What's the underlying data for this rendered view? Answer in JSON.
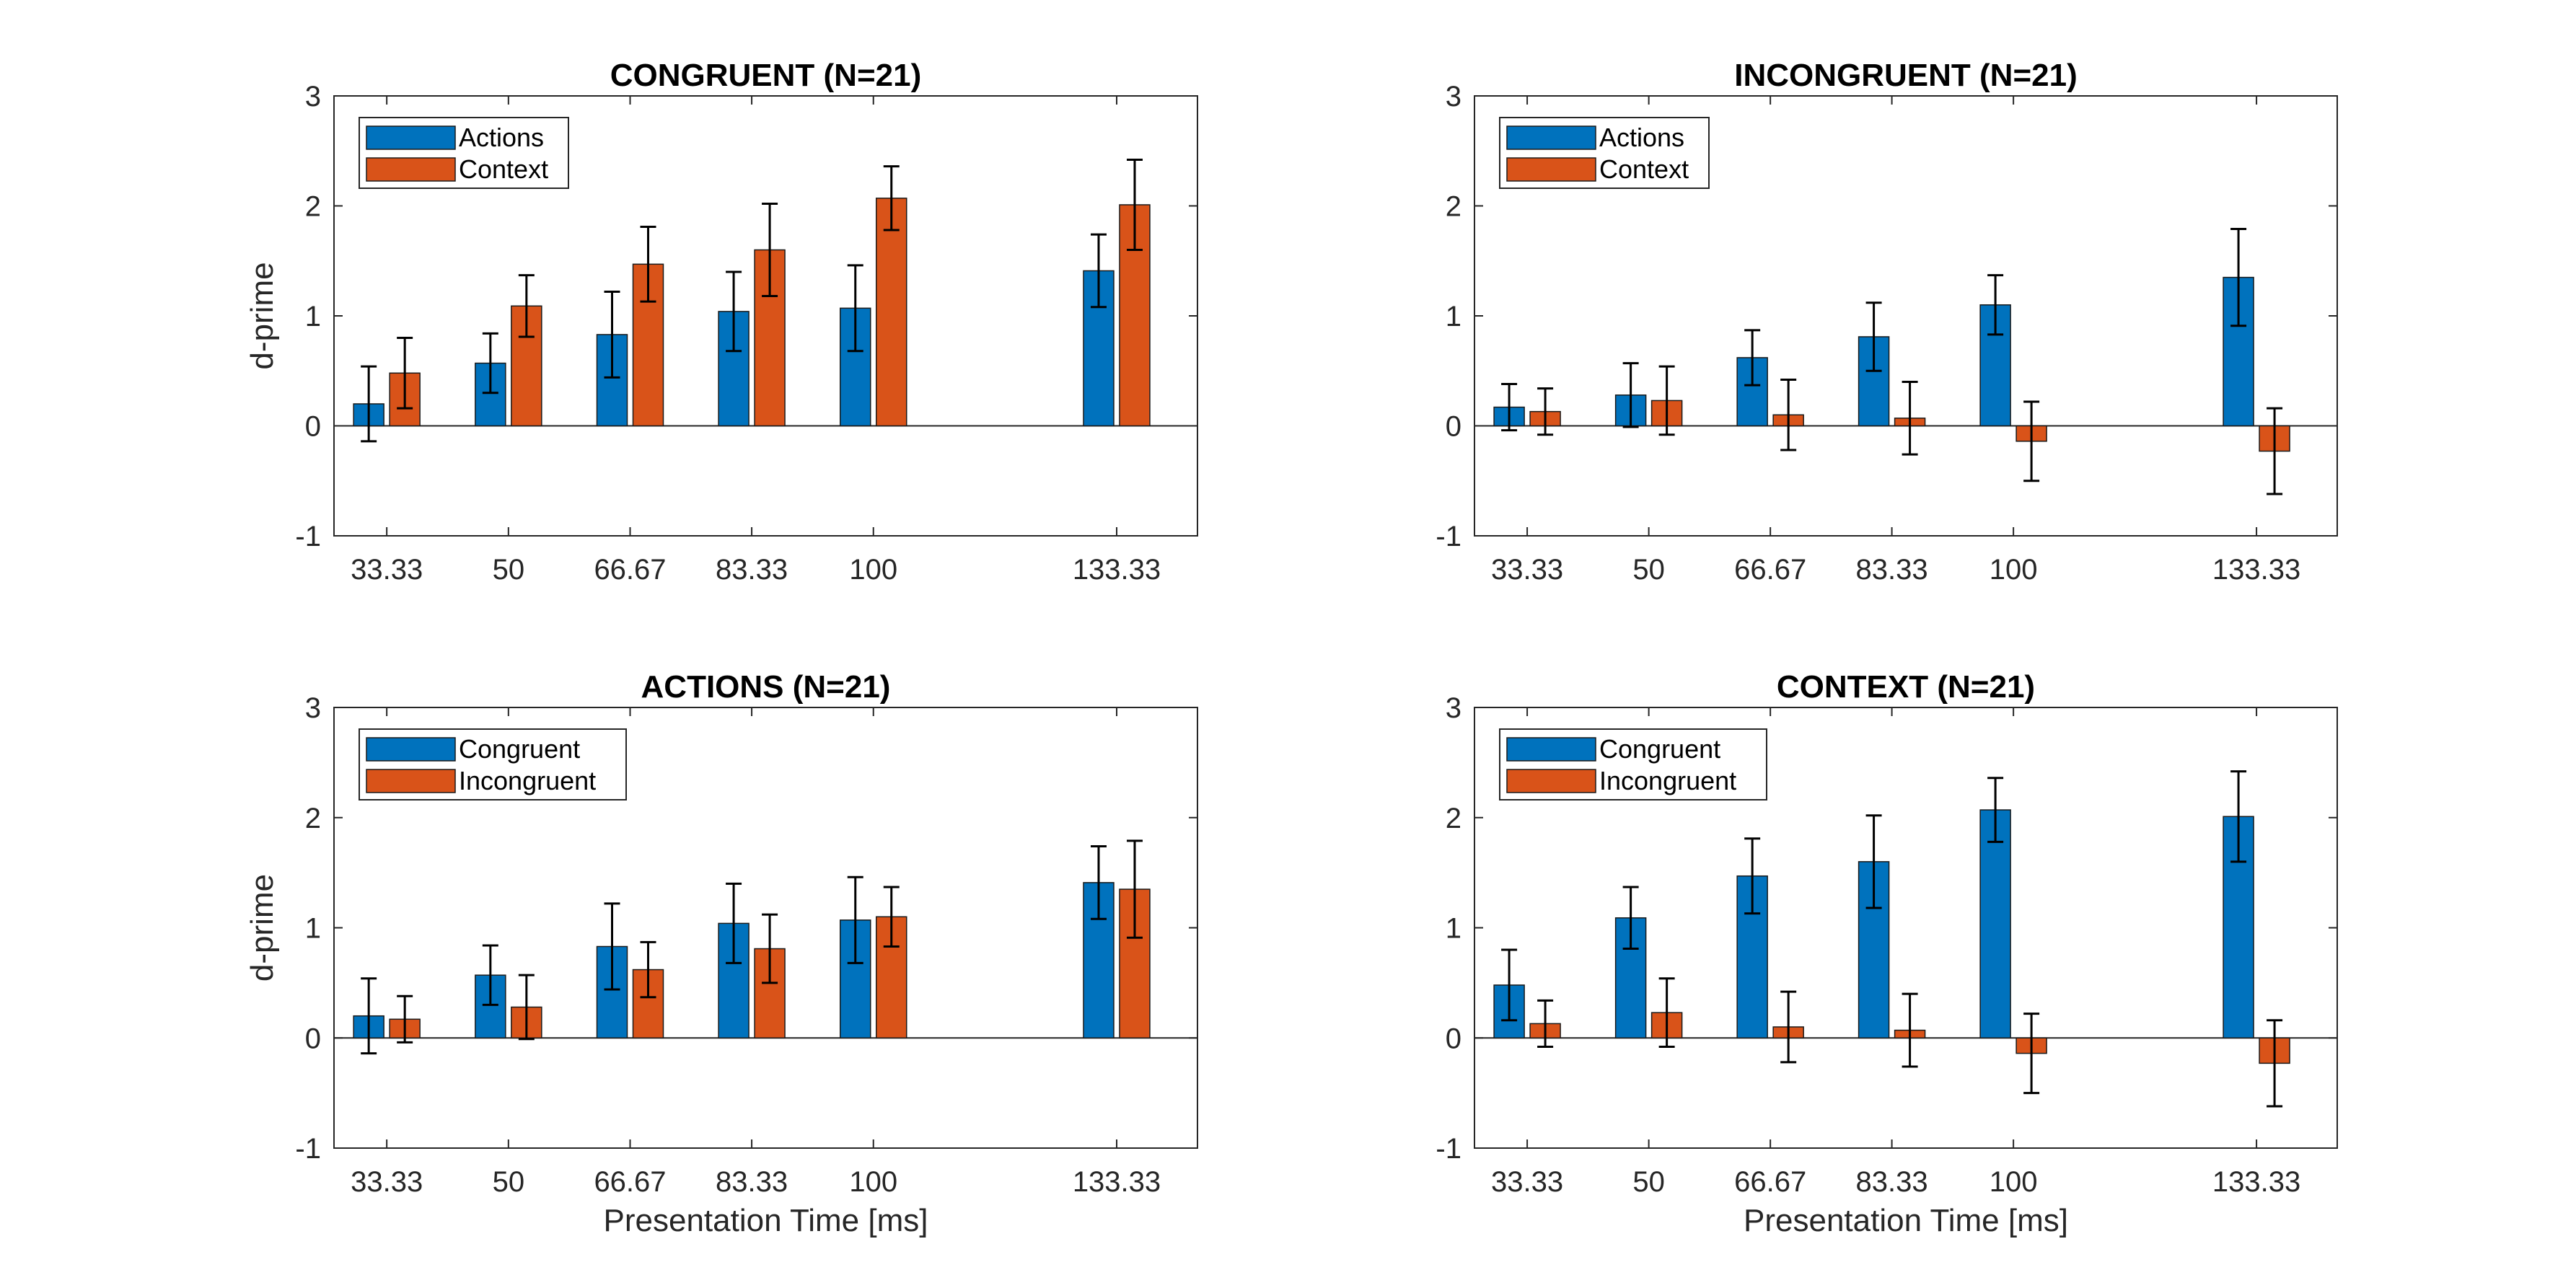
{
  "colors": {
    "series1": "#0072BD",
    "series2": "#D95319",
    "axis": "#262626",
    "errorbar": "#000000"
  },
  "chart_data": [
    {
      "type": "bar",
      "title": "CONGRUENT (N=21)",
      "xlabel": "",
      "ylabel": "d-prime",
      "ylim": [
        -1,
        3
      ],
      "yticks": [
        "-1",
        "0",
        "1",
        "2",
        "3"
      ],
      "categories": [
        "33.33",
        "50",
        "66.67",
        "83.33",
        "100",
        "133.33"
      ],
      "x": [
        33.33,
        50,
        66.67,
        83.33,
        100,
        133.33
      ],
      "legend_position": "top-left",
      "series": [
        {
          "name": "Actions",
          "values": [
            0.2,
            0.57,
            0.83,
            1.04,
            1.07,
            1.41
          ],
          "errors": [
            0.34,
            0.27,
            0.39,
            0.36,
            0.39,
            0.33
          ]
        },
        {
          "name": "Context",
          "values": [
            0.48,
            1.09,
            1.47,
            1.6,
            2.07,
            2.01
          ],
          "errors": [
            0.32,
            0.28,
            0.34,
            0.42,
            0.29,
            0.41
          ]
        }
      ]
    },
    {
      "type": "bar",
      "title": "INCONGRUENT (N=21)",
      "xlabel": "",
      "ylabel": "",
      "ylim": [
        -1,
        3
      ],
      "yticks": [
        "-1",
        "0",
        "1",
        "2",
        "3"
      ],
      "categories": [
        "33.33",
        "50",
        "66.67",
        "83.33",
        "100",
        "133.33"
      ],
      "x": [
        33.33,
        50,
        66.67,
        83.33,
        100,
        133.33
      ],
      "legend_position": "top-left",
      "series": [
        {
          "name": "Actions",
          "values": [
            0.17,
            0.28,
            0.62,
            0.81,
            1.1,
            1.35
          ],
          "errors": [
            0.21,
            0.29,
            0.25,
            0.31,
            0.27,
            0.44
          ]
        },
        {
          "name": "Context",
          "values": [
            0.13,
            0.23,
            0.1,
            0.07,
            -0.14,
            -0.23
          ],
          "errors": [
            0.21,
            0.31,
            0.32,
            0.33,
            0.36,
            0.39
          ]
        }
      ]
    },
    {
      "type": "bar",
      "title": "ACTIONS (N=21)",
      "xlabel": "Presentation Time [ms]",
      "ylabel": "d-prime",
      "ylim": [
        -1,
        3
      ],
      "yticks": [
        "-1",
        "0",
        "1",
        "2",
        "3"
      ],
      "categories": [
        "33.33",
        "50",
        "66.67",
        "83.33",
        "100",
        "133.33"
      ],
      "x": [
        33.33,
        50,
        66.67,
        83.33,
        100,
        133.33
      ],
      "legend_position": "top-left",
      "series": [
        {
          "name": "Congruent",
          "values": [
            0.2,
            0.57,
            0.83,
            1.04,
            1.07,
            1.41
          ],
          "errors": [
            0.34,
            0.27,
            0.39,
            0.36,
            0.39,
            0.33
          ]
        },
        {
          "name": "Incongruent",
          "values": [
            0.17,
            0.28,
            0.62,
            0.81,
            1.1,
            1.35
          ],
          "errors": [
            0.21,
            0.29,
            0.25,
            0.31,
            0.27,
            0.44
          ]
        }
      ]
    },
    {
      "type": "bar",
      "title": "CONTEXT (N=21)",
      "xlabel": "Presentation Time [ms]",
      "ylabel": "",
      "ylim": [
        -1,
        3
      ],
      "yticks": [
        "-1",
        "0",
        "1",
        "2",
        "3"
      ],
      "categories": [
        "33.33",
        "50",
        "66.67",
        "83.33",
        "100",
        "133.33"
      ],
      "x": [
        33.33,
        50,
        66.67,
        83.33,
        100,
        133.33
      ],
      "legend_position": "top-left",
      "series": [
        {
          "name": "Congruent",
          "values": [
            0.48,
            1.09,
            1.47,
            1.6,
            2.07,
            2.01
          ],
          "errors": [
            0.32,
            0.28,
            0.34,
            0.42,
            0.29,
            0.41
          ]
        },
        {
          "name": "Incongruent",
          "values": [
            0.13,
            0.23,
            0.1,
            0.07,
            -0.14,
            -0.23
          ],
          "errors": [
            0.21,
            0.31,
            0.32,
            0.33,
            0.36,
            0.39
          ]
        }
      ]
    }
  ]
}
